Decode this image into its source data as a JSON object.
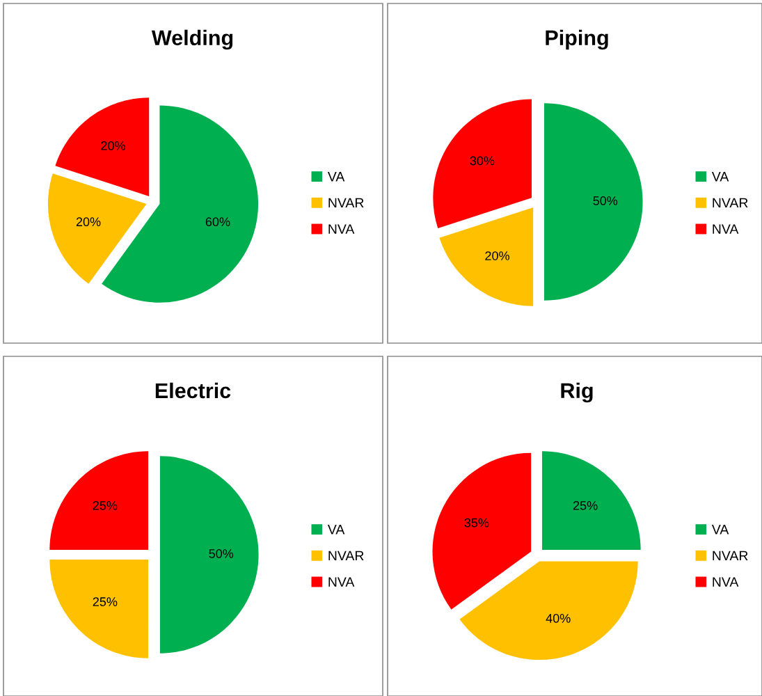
{
  "chart_data": [
    {
      "type": "pie",
      "title": "Welding",
      "categories": [
        "VA",
        "NVAR",
        "NVA"
      ],
      "values": [
        60,
        20,
        20
      ],
      "value_labels": [
        "60%",
        "20%",
        "20%"
      ],
      "colors": [
        "#00b050",
        "#ffc000",
        "#ff0000"
      ],
      "legend": "right"
    },
    {
      "type": "pie",
      "title": "Piping",
      "categories": [
        "VA",
        "NVAR",
        "NVA"
      ],
      "values": [
        50,
        20,
        30
      ],
      "value_labels": [
        "50%",
        "20%",
        "30%"
      ],
      "colors": [
        "#00b050",
        "#ffc000",
        "#ff0000"
      ],
      "legend": "right"
    },
    {
      "type": "pie",
      "title": "Electric",
      "categories": [
        "VA",
        "NVAR",
        "NVA"
      ],
      "values": [
        50,
        25,
        25
      ],
      "value_labels": [
        "50%",
        "25%",
        "25%"
      ],
      "colors": [
        "#00b050",
        "#ffc000",
        "#ff0000"
      ],
      "legend": "right"
    },
    {
      "type": "pie",
      "title": "Rig",
      "categories": [
        "VA",
        "NVAR",
        "NVA"
      ],
      "values": [
        25,
        40,
        35
      ],
      "value_labels": [
        "25%",
        "40%",
        "35%"
      ],
      "colors": [
        "#00b050",
        "#ffc000",
        "#ff0000"
      ],
      "legend": "right"
    }
  ]
}
